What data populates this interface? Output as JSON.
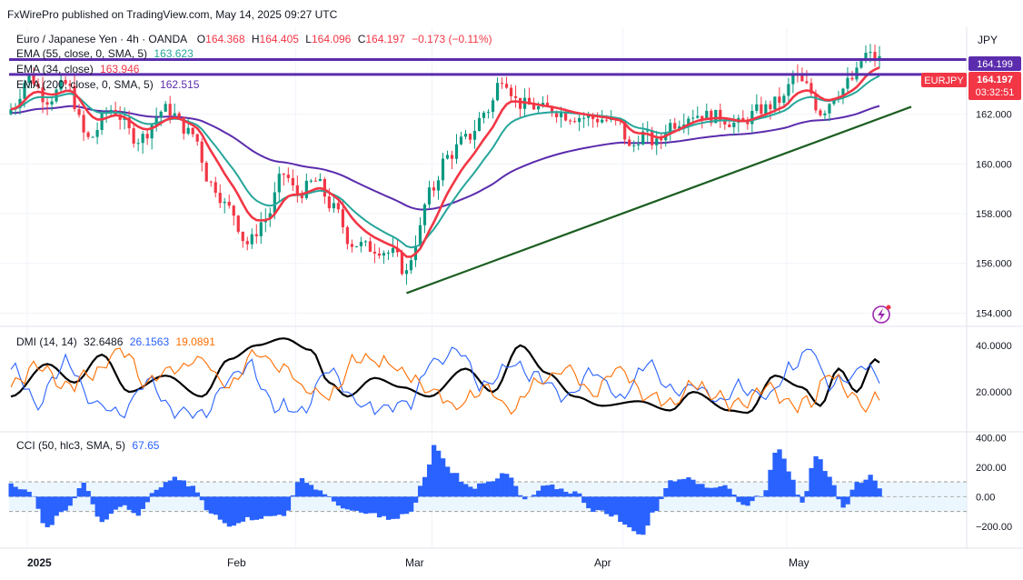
{
  "header": {
    "publisher": "FxWirePro published on TradingView.com, May 14, 2025 09:27 UTC",
    "symbol_title": "Euro / Japanese Yen · 4h · OANDA",
    "ohlc": {
      "o_label": "O",
      "o": "164.368",
      "h_label": "H",
      "h": "164.405",
      "l_label": "L",
      "l": "164.096",
      "c_label": "C",
      "c": "164.197",
      "change": "−0.173 (−0.11%)"
    }
  },
  "indicators": [
    {
      "label": "EMA (55, close, 0, SMA, 5)",
      "value": "163.623",
      "color": "#26a69a"
    },
    {
      "label": "EMA (34, close)",
      "value": "163.946",
      "color": "#f23645"
    },
    {
      "label": "EMA (200, close, 0, SMA, 5)",
      "value": "162.515",
      "color": "#5b2cad"
    }
  ],
  "currency": "JPY",
  "price_tags": {
    "top_line": "164.199",
    "symbol": "EURJPY",
    "last_price": "164.197",
    "countdown": "03:32:51"
  },
  "colors": {
    "up": "#089981",
    "down": "#f23645",
    "ema55": "#26a69a",
    "ema34": "#f23645",
    "ema200": "#5b2cad",
    "trendline": "#1b5e20",
    "levels": "#5b2cad",
    "dmi_adx": "#000000",
    "dmi_plus": "#2962ff",
    "dmi_minus": "#ff6d00",
    "cci": "#2962ff"
  },
  "chart_data": [
    {
      "type": "candlestick",
      "title": "Euro / Japanese Yen · 4h · OANDA",
      "ylim": [
        153.5,
        165.5
      ],
      "yticks": [
        "154.000",
        "156.000",
        "158.000",
        "160.000",
        "162.000"
      ],
      "x_labels": [
        "2025",
        "Feb",
        "Mar",
        "Apr",
        "May"
      ],
      "anchors": [
        {
          "t": 0,
          "p": 162.2
        },
        {
          "t": 4,
          "p": 163.5
        },
        {
          "t": 8,
          "p": 162.6
        },
        {
          "t": 12,
          "p": 163.2
        },
        {
          "t": 17,
          "p": 161.0
        },
        {
          "t": 22,
          "p": 162.2
        },
        {
          "t": 28,
          "p": 161.0
        },
        {
          "t": 34,
          "p": 162.2
        },
        {
          "t": 40,
          "p": 161.2
        },
        {
          "t": 44,
          "p": 159.2
        },
        {
          "t": 48,
          "p": 158.2
        },
        {
          "t": 52,
          "p": 156.8
        },
        {
          "t": 56,
          "p": 157.8
        },
        {
          "t": 60,
          "p": 159.6
        },
        {
          "t": 63,
          "p": 158.8
        },
        {
          "t": 67,
          "p": 159.3
        },
        {
          "t": 71,
          "p": 158.2
        },
        {
          "t": 75,
          "p": 156.8
        },
        {
          "t": 80,
          "p": 156.6
        },
        {
          "t": 84,
          "p": 156.4
        },
        {
          "t": 87,
          "p": 155.6
        },
        {
          "t": 89,
          "p": 156.9
        },
        {
          "t": 92,
          "p": 158.8
        },
        {
          "t": 96,
          "p": 160.3
        },
        {
          "t": 100,
          "p": 161.0
        },
        {
          "t": 105,
          "p": 162.2
        },
        {
          "t": 108,
          "p": 163.5
        },
        {
          "t": 112,
          "p": 162.4
        },
        {
          "t": 118,
          "p": 162.2
        },
        {
          "t": 124,
          "p": 161.9
        },
        {
          "t": 130,
          "p": 161.8
        },
        {
          "t": 134,
          "p": 161.6
        },
        {
          "t": 136,
          "p": 160.6
        },
        {
          "t": 139,
          "p": 161.2
        },
        {
          "t": 142,
          "p": 160.8
        },
        {
          "t": 145,
          "p": 161.6
        },
        {
          "t": 150,
          "p": 162.0
        },
        {
          "t": 155,
          "p": 161.9
        },
        {
          "t": 160,
          "p": 161.6
        },
        {
          "t": 165,
          "p": 162.2
        },
        {
          "t": 170,
          "p": 162.6
        },
        {
          "t": 172,
          "p": 163.6
        },
        {
          "t": 175,
          "p": 163.1
        },
        {
          "t": 178,
          "p": 162.1
        },
        {
          "t": 182,
          "p": 162.9
        },
        {
          "t": 185,
          "p": 163.4
        },
        {
          "t": 188,
          "p": 164.4
        },
        {
          "t": 191,
          "p": 164.197
        }
      ],
      "levels": [
        164.199,
        163.6
      ],
      "trendline": [
        {
          "t": 87,
          "p": 154.8
        },
        {
          "t": 198,
          "p": 162.3
        }
      ],
      "last_price": 164.197
    },
    {
      "type": "line",
      "title": "DMI (14, 14)",
      "values": [
        "32.6486",
        "26.1563",
        "19.0891"
      ],
      "ylim": [
        4,
        47
      ],
      "yticks": [
        "20.0000",
        "40.0000"
      ],
      "series": [
        {
          "name": "ADX",
          "color": "#000000",
          "anchors": [
            {
              "t": 0,
              "v": 18
            },
            {
              "t": 8,
              "v": 32
            },
            {
              "t": 14,
              "v": 24
            },
            {
              "t": 20,
              "v": 36
            },
            {
              "t": 26,
              "v": 20
            },
            {
              "t": 34,
              "v": 27
            },
            {
              "t": 42,
              "v": 18
            },
            {
              "t": 48,
              "v": 34
            },
            {
              "t": 54,
              "v": 40
            },
            {
              "t": 60,
              "v": 43
            },
            {
              "t": 66,
              "v": 38
            },
            {
              "t": 70,
              "v": 24
            },
            {
              "t": 74,
              "v": 18
            },
            {
              "t": 80,
              "v": 26
            },
            {
              "t": 86,
              "v": 22
            },
            {
              "t": 92,
              "v": 18
            },
            {
              "t": 100,
              "v": 30
            },
            {
              "t": 106,
              "v": 20
            },
            {
              "t": 112,
              "v": 40
            },
            {
              "t": 118,
              "v": 28
            },
            {
              "t": 124,
              "v": 18
            },
            {
              "t": 130,
              "v": 14
            },
            {
              "t": 138,
              "v": 16
            },
            {
              "t": 145,
              "v": 12
            },
            {
              "t": 150,
              "v": 20
            },
            {
              "t": 158,
              "v": 12
            },
            {
              "t": 162,
              "v": 11
            },
            {
              "t": 168,
              "v": 27
            },
            {
              "t": 174,
              "v": 22
            },
            {
              "t": 178,
              "v": 14
            },
            {
              "t": 182,
              "v": 30
            },
            {
              "t": 186,
              "v": 20
            },
            {
              "t": 190,
              "v": 34
            },
            {
              "t": 191,
              "v": 32.6
            }
          ]
        },
        {
          "name": "+DI",
          "color": "#2962ff",
          "anchors": [
            {
              "t": 0,
              "v": 30
            },
            {
              "t": 6,
              "v": 15
            },
            {
              "t": 12,
              "v": 33
            },
            {
              "t": 18,
              "v": 16
            },
            {
              "t": 24,
              "v": 10
            },
            {
              "t": 30,
              "v": 25
            },
            {
              "t": 36,
              "v": 12
            },
            {
              "t": 42,
              "v": 10
            },
            {
              "t": 48,
              "v": 26
            },
            {
              "t": 52,
              "v": 32
            },
            {
              "t": 58,
              "v": 14
            },
            {
              "t": 64,
              "v": 12
            },
            {
              "t": 70,
              "v": 30
            },
            {
              "t": 76,
              "v": 15
            },
            {
              "t": 82,
              "v": 12
            },
            {
              "t": 88,
              "v": 16
            },
            {
              "t": 92,
              "v": 32
            },
            {
              "t": 98,
              "v": 38
            },
            {
              "t": 104,
              "v": 22
            },
            {
              "t": 110,
              "v": 32
            },
            {
              "t": 116,
              "v": 26
            },
            {
              "t": 122,
              "v": 18
            },
            {
              "t": 128,
              "v": 28
            },
            {
              "t": 134,
              "v": 18
            },
            {
              "t": 140,
              "v": 32
            },
            {
              "t": 146,
              "v": 20
            },
            {
              "t": 150,
              "v": 23
            },
            {
              "t": 156,
              "v": 16
            },
            {
              "t": 160,
              "v": 23
            },
            {
              "t": 166,
              "v": 18
            },
            {
              "t": 172,
              "v": 30
            },
            {
              "t": 176,
              "v": 39
            },
            {
              "t": 180,
              "v": 22
            },
            {
              "t": 184,
              "v": 26
            },
            {
              "t": 188,
              "v": 32
            },
            {
              "t": 191,
              "v": 26.2
            }
          ]
        },
        {
          "name": "-DI",
          "color": "#ff6d00",
          "anchors": [
            {
              "t": 0,
              "v": 22
            },
            {
              "t": 6,
              "v": 32
            },
            {
              "t": 12,
              "v": 22
            },
            {
              "t": 18,
              "v": 28
            },
            {
              "t": 24,
              "v": 38
            },
            {
              "t": 30,
              "v": 24
            },
            {
              "t": 36,
              "v": 30
            },
            {
              "t": 42,
              "v": 34
            },
            {
              "t": 48,
              "v": 22
            },
            {
              "t": 54,
              "v": 36
            },
            {
              "t": 60,
              "v": 30
            },
            {
              "t": 66,
              "v": 20
            },
            {
              "t": 70,
              "v": 18
            },
            {
              "t": 76,
              "v": 35
            },
            {
              "t": 82,
              "v": 33
            },
            {
              "t": 88,
              "v": 26
            },
            {
              "t": 92,
              "v": 20
            },
            {
              "t": 98,
              "v": 14
            },
            {
              "t": 104,
              "v": 22
            },
            {
              "t": 110,
              "v": 12
            },
            {
              "t": 116,
              "v": 24
            },
            {
              "t": 122,
              "v": 30
            },
            {
              "t": 128,
              "v": 20
            },
            {
              "t": 134,
              "v": 30
            },
            {
              "t": 140,
              "v": 18
            },
            {
              "t": 146,
              "v": 16
            },
            {
              "t": 150,
              "v": 23
            },
            {
              "t": 156,
              "v": 17
            },
            {
              "t": 160,
              "v": 14
            },
            {
              "t": 166,
              "v": 22
            },
            {
              "t": 172,
              "v": 14
            },
            {
              "t": 176,
              "v": 16
            },
            {
              "t": 180,
              "v": 28
            },
            {
              "t": 184,
              "v": 20
            },
            {
              "t": 188,
              "v": 13
            },
            {
              "t": 191,
              "v": 19.1
            }
          ]
        }
      ]
    },
    {
      "type": "histogram",
      "title": "CCI (50, hlc3, SMA, 5)",
      "value": "67.65",
      "ylim": [
        -330,
        420
      ],
      "yticks": [
        "−200.00",
        "0.00",
        "200.00",
        "400.00"
      ],
      "bands": [
        100,
        -100
      ],
      "anchors": [
        {
          "t": 0,
          "v": 90
        },
        {
          "t": 4,
          "v": 30
        },
        {
          "t": 8,
          "v": -200
        },
        {
          "t": 12,
          "v": -80
        },
        {
          "t": 16,
          "v": 80
        },
        {
          "t": 20,
          "v": -160
        },
        {
          "t": 24,
          "v": -60
        },
        {
          "t": 28,
          "v": -120
        },
        {
          "t": 32,
          "v": 40
        },
        {
          "t": 36,
          "v": 130
        },
        {
          "t": 40,
          "v": 60
        },
        {
          "t": 44,
          "v": -120
        },
        {
          "t": 48,
          "v": -190
        },
        {
          "t": 52,
          "v": -150
        },
        {
          "t": 56,
          "v": -140
        },
        {
          "t": 60,
          "v": -120
        },
        {
          "t": 64,
          "v": 120
        },
        {
          "t": 68,
          "v": 40
        },
        {
          "t": 72,
          "v": -60
        },
        {
          "t": 76,
          "v": -110
        },
        {
          "t": 80,
          "v": -120
        },
        {
          "t": 84,
          "v": -160
        },
        {
          "t": 88,
          "v": -100
        },
        {
          "t": 91,
          "v": 120
        },
        {
          "t": 93,
          "v": 340
        },
        {
          "t": 97,
          "v": 170
        },
        {
          "t": 101,
          "v": 60
        },
        {
          "t": 105,
          "v": 110
        },
        {
          "t": 109,
          "v": 150
        },
        {
          "t": 113,
          "v": -20
        },
        {
          "t": 118,
          "v": 70
        },
        {
          "t": 124,
          "v": 30
        },
        {
          "t": 128,
          "v": -90
        },
        {
          "t": 132,
          "v": -120
        },
        {
          "t": 136,
          "v": -210
        },
        {
          "t": 139,
          "v": -260
        },
        {
          "t": 141,
          "v": -120
        },
        {
          "t": 145,
          "v": 100
        },
        {
          "t": 149,
          "v": 140
        },
        {
          "t": 153,
          "v": 60
        },
        {
          "t": 157,
          "v": 80
        },
        {
          "t": 161,
          "v": -60
        },
        {
          "t": 165,
          "v": 10
        },
        {
          "t": 169,
          "v": 330
        },
        {
          "t": 171,
          "v": 180
        },
        {
          "t": 174,
          "v": -30
        },
        {
          "t": 177,
          "v": 280
        },
        {
          "t": 180,
          "v": 120
        },
        {
          "t": 183,
          "v": -80
        },
        {
          "t": 186,
          "v": 90
        },
        {
          "t": 189,
          "v": 140
        },
        {
          "t": 191,
          "v": 67.65
        }
      ]
    }
  ]
}
